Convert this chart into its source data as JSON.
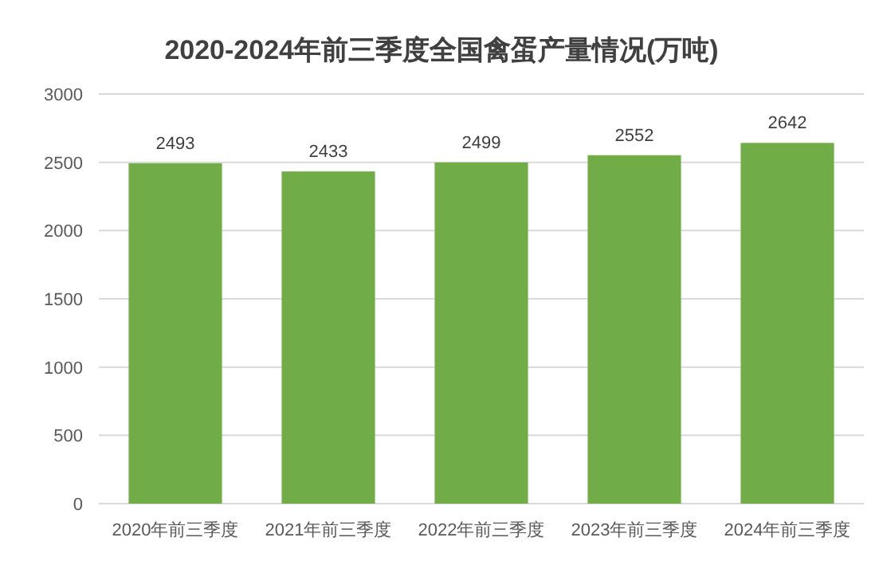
{
  "chart_data": {
    "type": "bar",
    "title": "2020-2024年前三季度全国禽蛋产量情况(万吨)",
    "categories": [
      "2020年前三季度",
      "2021年前三季度",
      "2022年前三季度",
      "2023年前三季度",
      "2024年前三季度"
    ],
    "values": [
      2493,
      2433,
      2499,
      2552,
      2642
    ],
    "color": "#70ad47",
    "ylim": [
      0,
      3000
    ],
    "yticks": [
      0,
      500,
      1000,
      1500,
      2000,
      2500,
      3000
    ],
    "grid": "y",
    "data_labels": true
  }
}
